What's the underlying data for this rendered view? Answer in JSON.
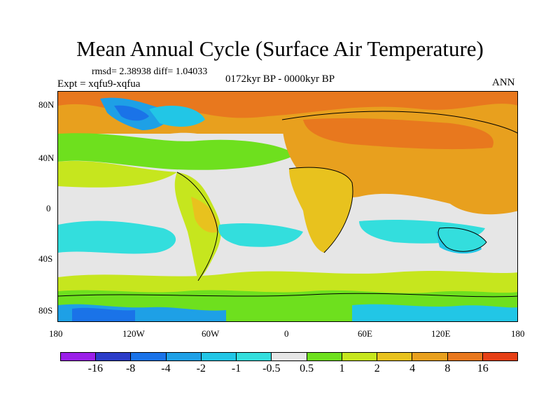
{
  "title": "Mean Annual Cycle (Surface Air Temperature)",
  "stats": "rmsd= 2.38938 diff= 1.04033",
  "experiment": "Expt = xqfu9-xqfua",
  "period": "0172kyr BP - 0000kyr BP",
  "season": "ANN",
  "latitude_labels": [
    "80N",
    "40N",
    "0",
    "40S",
    "80S"
  ],
  "longitude_labels": [
    "180",
    "120W",
    "60W",
    "0",
    "60E",
    "120E",
    "180"
  ],
  "colorbar": {
    "colors": [
      "#9b1fe8",
      "#2b3cc8",
      "#1a73e8",
      "#1ea0e6",
      "#22c6e6",
      "#33dedd",
      "#e6e6e6",
      "#6ee01e",
      "#c6e61e",
      "#e8c21e",
      "#e8a01e",
      "#e8781e",
      "#e64016"
    ],
    "labels": [
      "-16",
      "-8",
      "-4",
      "-2",
      "-1",
      "-0.5",
      "0.5",
      "1",
      "2",
      "4",
      "8",
      "16"
    ]
  }
}
